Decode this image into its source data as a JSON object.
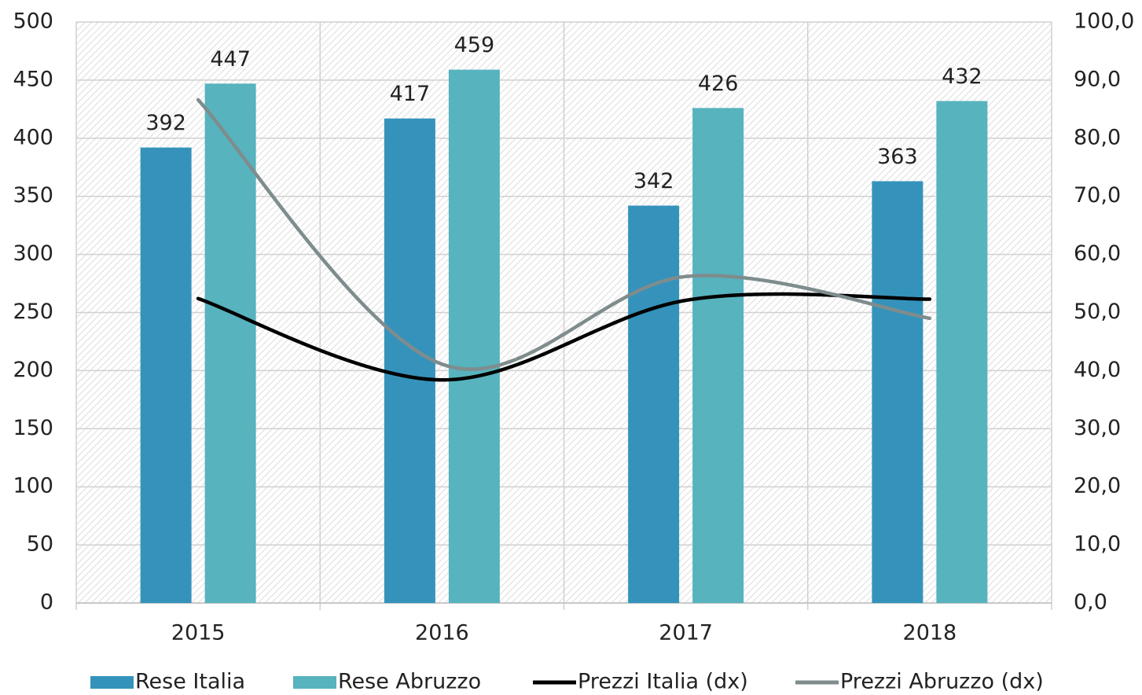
{
  "chart_data": {
    "type": "bar",
    "categories": [
      "2015",
      "2016",
      "2017",
      "2018"
    ],
    "series": [
      {
        "name": "Rese Italia",
        "type": "bar",
        "color": "#3593bb",
        "values": [
          392,
          417,
          342,
          363
        ]
      },
      {
        "name": "Rese Abruzzo",
        "type": "bar",
        "color": "#57b3be",
        "values": [
          447,
          459,
          426,
          432
        ]
      },
      {
        "name": "Prezzi Italia (dx)",
        "type": "line",
        "axis": "y2",
        "color": "#000000",
        "values": [
          52.4,
          38.4,
          52.1,
          52.3
        ]
      },
      {
        "name": "Prezzi Abruzzo (dx)",
        "type": "line",
        "axis": "y2",
        "color": "#7f8c8d",
        "values": [
          86.6,
          41.1,
          56.2,
          49.0
        ]
      }
    ],
    "ylim": [
      0,
      500
    ],
    "yticks": [
      0,
      50,
      100,
      150,
      200,
      250,
      300,
      350,
      400,
      450,
      500
    ],
    "y2lim": [
      0,
      100
    ],
    "y2ticks": [
      {
        "value": 0,
        "label": "0,0"
      },
      {
        "value": 10,
        "label": "10,0"
      },
      {
        "value": 20,
        "label": "20,0"
      },
      {
        "value": 30,
        "label": "30,0"
      },
      {
        "value": 40,
        "label": "40,0"
      },
      {
        "value": 50,
        "label": "50,0"
      },
      {
        "value": 60,
        "label": "60,0"
      },
      {
        "value": 70,
        "label": "70,0"
      },
      {
        "value": 80,
        "label": "80,0"
      },
      {
        "value": 90,
        "label": "90,0"
      },
      {
        "value": 100,
        "label": "100,0"
      }
    ],
    "grid": true,
    "legend": "bottom"
  }
}
